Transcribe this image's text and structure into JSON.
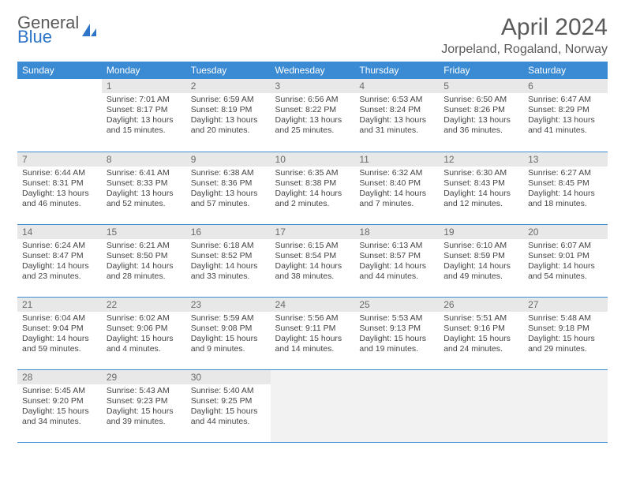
{
  "brand": {
    "word1": "General",
    "word2": "Blue"
  },
  "title": "April 2024",
  "location": "Jorpeland, Rogaland, Norway",
  "colors": {
    "header_bg": "#3b8bd4",
    "header_text": "#ffffff",
    "daynum_bg": "#e8e8e8",
    "border": "#3b8bd4",
    "text": "#444444",
    "title_text": "#5a5a5a",
    "brand_blue": "#2e75c9",
    "trailing_bg": "#f2f2f2"
  },
  "weekdays": [
    "Sunday",
    "Monday",
    "Tuesday",
    "Wednesday",
    "Thursday",
    "Friday",
    "Saturday"
  ],
  "weeks": [
    [
      null,
      {
        "n": "1",
        "sr": "7:01 AM",
        "ss": "8:17 PM",
        "dl": "13 hours and 15 minutes."
      },
      {
        "n": "2",
        "sr": "6:59 AM",
        "ss": "8:19 PM",
        "dl": "13 hours and 20 minutes."
      },
      {
        "n": "3",
        "sr": "6:56 AM",
        "ss": "8:22 PM",
        "dl": "13 hours and 25 minutes."
      },
      {
        "n": "4",
        "sr": "6:53 AM",
        "ss": "8:24 PM",
        "dl": "13 hours and 31 minutes."
      },
      {
        "n": "5",
        "sr": "6:50 AM",
        "ss": "8:26 PM",
        "dl": "13 hours and 36 minutes."
      },
      {
        "n": "6",
        "sr": "6:47 AM",
        "ss": "8:29 PM",
        "dl": "13 hours and 41 minutes."
      }
    ],
    [
      {
        "n": "7",
        "sr": "6:44 AM",
        "ss": "8:31 PM",
        "dl": "13 hours and 46 minutes."
      },
      {
        "n": "8",
        "sr": "6:41 AM",
        "ss": "8:33 PM",
        "dl": "13 hours and 52 minutes."
      },
      {
        "n": "9",
        "sr": "6:38 AM",
        "ss": "8:36 PM",
        "dl": "13 hours and 57 minutes."
      },
      {
        "n": "10",
        "sr": "6:35 AM",
        "ss": "8:38 PM",
        "dl": "14 hours and 2 minutes."
      },
      {
        "n": "11",
        "sr": "6:32 AM",
        "ss": "8:40 PM",
        "dl": "14 hours and 7 minutes."
      },
      {
        "n": "12",
        "sr": "6:30 AM",
        "ss": "8:43 PM",
        "dl": "14 hours and 12 minutes."
      },
      {
        "n": "13",
        "sr": "6:27 AM",
        "ss": "8:45 PM",
        "dl": "14 hours and 18 minutes."
      }
    ],
    [
      {
        "n": "14",
        "sr": "6:24 AM",
        "ss": "8:47 PM",
        "dl": "14 hours and 23 minutes."
      },
      {
        "n": "15",
        "sr": "6:21 AM",
        "ss": "8:50 PM",
        "dl": "14 hours and 28 minutes."
      },
      {
        "n": "16",
        "sr": "6:18 AM",
        "ss": "8:52 PM",
        "dl": "14 hours and 33 minutes."
      },
      {
        "n": "17",
        "sr": "6:15 AM",
        "ss": "8:54 PM",
        "dl": "14 hours and 38 minutes."
      },
      {
        "n": "18",
        "sr": "6:13 AM",
        "ss": "8:57 PM",
        "dl": "14 hours and 44 minutes."
      },
      {
        "n": "19",
        "sr": "6:10 AM",
        "ss": "8:59 PM",
        "dl": "14 hours and 49 minutes."
      },
      {
        "n": "20",
        "sr": "6:07 AM",
        "ss": "9:01 PM",
        "dl": "14 hours and 54 minutes."
      }
    ],
    [
      {
        "n": "21",
        "sr": "6:04 AM",
        "ss": "9:04 PM",
        "dl": "14 hours and 59 minutes."
      },
      {
        "n": "22",
        "sr": "6:02 AM",
        "ss": "9:06 PM",
        "dl": "15 hours and 4 minutes."
      },
      {
        "n": "23",
        "sr": "5:59 AM",
        "ss": "9:08 PM",
        "dl": "15 hours and 9 minutes."
      },
      {
        "n": "24",
        "sr": "5:56 AM",
        "ss": "9:11 PM",
        "dl": "15 hours and 14 minutes."
      },
      {
        "n": "25",
        "sr": "5:53 AM",
        "ss": "9:13 PM",
        "dl": "15 hours and 19 minutes."
      },
      {
        "n": "26",
        "sr": "5:51 AM",
        "ss": "9:16 PM",
        "dl": "15 hours and 24 minutes."
      },
      {
        "n": "27",
        "sr": "5:48 AM",
        "ss": "9:18 PM",
        "dl": "15 hours and 29 minutes."
      }
    ],
    [
      {
        "n": "28",
        "sr": "5:45 AM",
        "ss": "9:20 PM",
        "dl": "15 hours and 34 minutes."
      },
      {
        "n": "29",
        "sr": "5:43 AM",
        "ss": "9:23 PM",
        "dl": "15 hours and 39 minutes."
      },
      {
        "n": "30",
        "sr": "5:40 AM",
        "ss": "9:25 PM",
        "dl": "15 hours and 44 minutes."
      },
      {
        "trailing": true
      },
      {
        "trailing": true
      },
      {
        "trailing": true
      },
      {
        "trailing": true
      }
    ]
  ],
  "labels": {
    "sunrise": "Sunrise: ",
    "sunset": "Sunset: ",
    "daylight": "Daylight: "
  }
}
